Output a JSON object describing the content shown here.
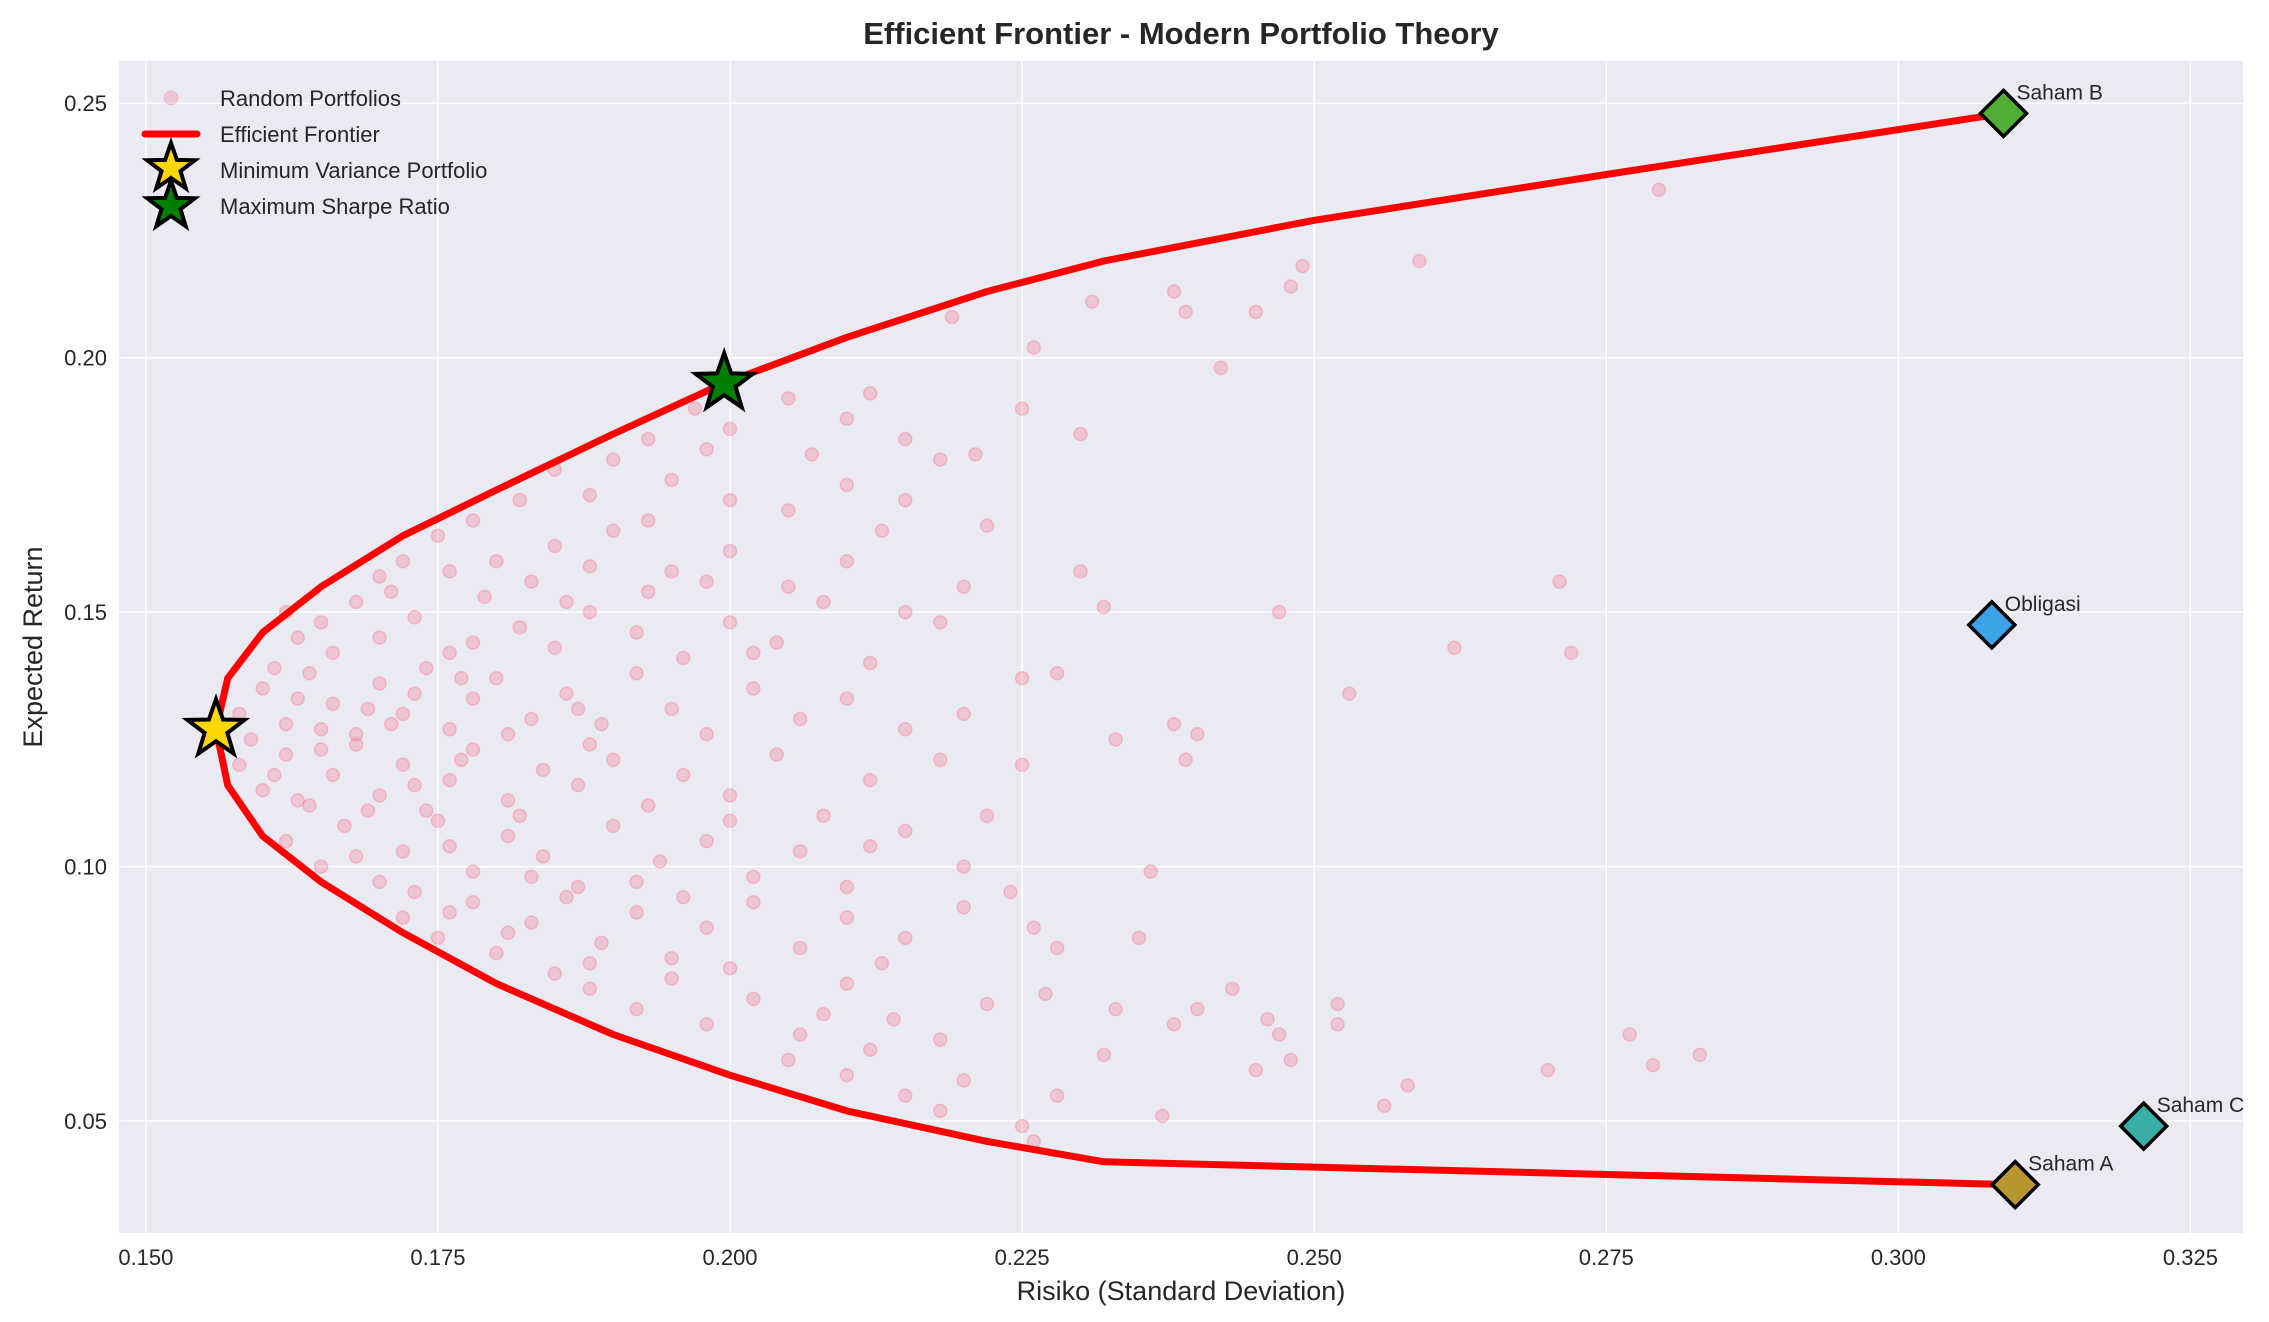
{
  "chart_data": {
    "type": "scatter",
    "title": "Efficient Frontier - Modern Portfolio Theory",
    "xlabel": "Risiko (Standard Deviation)",
    "ylabel": "Expected Return",
    "xlim": [
      0.1477,
      0.3295
    ],
    "ylim": [
      0.028,
      0.2583
    ],
    "xticks": [
      "0.150",
      "0.175",
      "0.200",
      "0.225",
      "0.250",
      "0.275",
      "0.300",
      "0.325"
    ],
    "yticks": [
      "0.05",
      "0.10",
      "0.15",
      "0.20",
      "0.25"
    ],
    "grid": true,
    "legend_position": "top-left",
    "background_color": "#EAEAF2",
    "legend": [
      {
        "label": "Random Portfolios",
        "marker": "circle",
        "color": "#f77189"
      },
      {
        "label": "Efficient Frontier",
        "marker": "line",
        "color": "#ff0000"
      },
      {
        "label": "Minimum Variance Portfolio",
        "marker": "star",
        "color": "#ffd700"
      },
      {
        "label": "Maximum Sharpe Ratio",
        "marker": "star",
        "color": "#008000"
      }
    ],
    "random_portfolios": [
      [
        0.197,
        0.19
      ],
      [
        0.205,
        0.192
      ],
      [
        0.21,
        0.188
      ],
      [
        0.2,
        0.186
      ],
      [
        0.215,
        0.184
      ],
      [
        0.193,
        0.184
      ],
      [
        0.212,
        0.193
      ],
      [
        0.221,
        0.181
      ],
      [
        0.219,
        0.208
      ],
      [
        0.226,
        0.202
      ],
      [
        0.231,
        0.211
      ],
      [
        0.225,
        0.19
      ],
      [
        0.185,
        0.178
      ],
      [
        0.19,
        0.18
      ],
      [
        0.195,
        0.176
      ],
      [
        0.2,
        0.172
      ],
      [
        0.205,
        0.17
      ],
      [
        0.21,
        0.175
      ],
      [
        0.215,
        0.172
      ],
      [
        0.188,
        0.173
      ],
      [
        0.182,
        0.172
      ],
      [
        0.218,
        0.18
      ],
      [
        0.23,
        0.185
      ],
      [
        0.222,
        0.167
      ],
      [
        0.207,
        0.181
      ],
      [
        0.198,
        0.182
      ],
      [
        0.213,
        0.166
      ],
      [
        0.175,
        0.165
      ],
      [
        0.178,
        0.168
      ],
      [
        0.18,
        0.16
      ],
      [
        0.185,
        0.163
      ],
      [
        0.19,
        0.166
      ],
      [
        0.195,
        0.158
      ],
      [
        0.2,
        0.162
      ],
      [
        0.205,
        0.155
      ],
      [
        0.172,
        0.16
      ],
      [
        0.17,
        0.157
      ],
      [
        0.183,
        0.156
      ],
      [
        0.188,
        0.159
      ],
      [
        0.21,
        0.16
      ],
      [
        0.215,
        0.15
      ],
      [
        0.22,
        0.155
      ],
      [
        0.23,
        0.158
      ],
      [
        0.193,
        0.168
      ],
      [
        0.176,
        0.158
      ],
      [
        0.198,
        0.156
      ],
      [
        0.218,
        0.148
      ],
      [
        0.162,
        0.15
      ],
      [
        0.165,
        0.148
      ],
      [
        0.168,
        0.152
      ],
      [
        0.17,
        0.145
      ],
      [
        0.173,
        0.149
      ],
      [
        0.176,
        0.142
      ],
      [
        0.179,
        0.153
      ],
      [
        0.182,
        0.147
      ],
      [
        0.185,
        0.143
      ],
      [
        0.188,
        0.15
      ],
      [
        0.192,
        0.146
      ],
      [
        0.196,
        0.141
      ],
      [
        0.2,
        0.148
      ],
      [
        0.204,
        0.144
      ],
      [
        0.208,
        0.152
      ],
      [
        0.212,
        0.14
      ],
      [
        0.166,
        0.142
      ],
      [
        0.163,
        0.145
      ],
      [
        0.171,
        0.154
      ],
      [
        0.178,
        0.144
      ],
      [
        0.186,
        0.152
      ],
      [
        0.193,
        0.154
      ],
      [
        0.202,
        0.142
      ],
      [
        0.232,
        0.151
      ],
      [
        0.158,
        0.13
      ],
      [
        0.16,
        0.135
      ],
      [
        0.162,
        0.128
      ],
      [
        0.164,
        0.138
      ],
      [
        0.166,
        0.132
      ],
      [
        0.168,
        0.126
      ],
      [
        0.17,
        0.136
      ],
      [
        0.172,
        0.13
      ],
      [
        0.174,
        0.139
      ],
      [
        0.176,
        0.127
      ],
      [
        0.178,
        0.133
      ],
      [
        0.18,
        0.137
      ],
      [
        0.183,
        0.129
      ],
      [
        0.186,
        0.134
      ],
      [
        0.189,
        0.128
      ],
      [
        0.192,
        0.138
      ],
      [
        0.195,
        0.131
      ],
      [
        0.198,
        0.126
      ],
      [
        0.202,
        0.135
      ],
      [
        0.206,
        0.129
      ],
      [
        0.21,
        0.133
      ],
      [
        0.215,
        0.127
      ],
      [
        0.159,
        0.125
      ],
      [
        0.161,
        0.139
      ],
      [
        0.165,
        0.127
      ],
      [
        0.169,
        0.131
      ],
      [
        0.173,
        0.134
      ],
      [
        0.177,
        0.137
      ],
      [
        0.181,
        0.126
      ],
      [
        0.187,
        0.131
      ],
      [
        0.225,
        0.137
      ],
      [
        0.228,
        0.138
      ],
      [
        0.24,
        0.126
      ],
      [
        0.22,
        0.13
      ],
      [
        0.163,
        0.133
      ],
      [
        0.171,
        0.128
      ],
      [
        0.158,
        0.12
      ],
      [
        0.16,
        0.115
      ],
      [
        0.162,
        0.122
      ],
      [
        0.164,
        0.112
      ],
      [
        0.166,
        0.118
      ],
      [
        0.168,
        0.124
      ],
      [
        0.17,
        0.114
      ],
      [
        0.172,
        0.12
      ],
      [
        0.174,
        0.111
      ],
      [
        0.176,
        0.117
      ],
      [
        0.178,
        0.123
      ],
      [
        0.181,
        0.113
      ],
      [
        0.184,
        0.119
      ],
      [
        0.187,
        0.116
      ],
      [
        0.19,
        0.121
      ],
      [
        0.193,
        0.112
      ],
      [
        0.196,
        0.118
      ],
      [
        0.2,
        0.114
      ],
      [
        0.204,
        0.122
      ],
      [
        0.208,
        0.11
      ],
      [
        0.212,
        0.117
      ],
      [
        0.218,
        0.121
      ],
      [
        0.225,
        0.12
      ],
      [
        0.161,
        0.118
      ],
      [
        0.165,
        0.123
      ],
      [
        0.169,
        0.111
      ],
      [
        0.173,
        0.116
      ],
      [
        0.177,
        0.121
      ],
      [
        0.182,
        0.11
      ],
      [
        0.188,
        0.124
      ],
      [
        0.233,
        0.125
      ],
      [
        0.222,
        0.11
      ],
      [
        0.163,
        0.113
      ],
      [
        0.162,
        0.105
      ],
      [
        0.165,
        0.1
      ],
      [
        0.167,
        0.108
      ],
      [
        0.17,
        0.097
      ],
      [
        0.172,
        0.103
      ],
      [
        0.175,
        0.109
      ],
      [
        0.178,
        0.099
      ],
      [
        0.181,
        0.106
      ],
      [
        0.184,
        0.102
      ],
      [
        0.187,
        0.096
      ],
      [
        0.19,
        0.108
      ],
      [
        0.194,
        0.101
      ],
      [
        0.198,
        0.105
      ],
      [
        0.202,
        0.098
      ],
      [
        0.206,
        0.103
      ],
      [
        0.21,
        0.096
      ],
      [
        0.215,
        0.107
      ],
      [
        0.22,
        0.1
      ],
      [
        0.168,
        0.102
      ],
      [
        0.173,
        0.095
      ],
      [
        0.176,
        0.104
      ],
      [
        0.183,
        0.098
      ],
      [
        0.192,
        0.097
      ],
      [
        0.2,
        0.109
      ],
      [
        0.236,
        0.099
      ],
      [
        0.212,
        0.104
      ],
      [
        0.172,
        0.09
      ],
      [
        0.175,
        0.086
      ],
      [
        0.178,
        0.093
      ],
      [
        0.18,
        0.083
      ],
      [
        0.183,
        0.089
      ],
      [
        0.186,
        0.094
      ],
      [
        0.189,
        0.085
      ],
      [
        0.192,
        0.091
      ],
      [
        0.195,
        0.082
      ],
      [
        0.198,
        0.088
      ],
      [
        0.202,
        0.093
      ],
      [
        0.206,
        0.084
      ],
      [
        0.21,
        0.09
      ],
      [
        0.215,
        0.086
      ],
      [
        0.22,
        0.092
      ],
      [
        0.226,
        0.088
      ],
      [
        0.176,
        0.091
      ],
      [
        0.181,
        0.087
      ],
      [
        0.188,
        0.081
      ],
      [
        0.196,
        0.094
      ],
      [
        0.228,
        0.084
      ],
      [
        0.235,
        0.086
      ],
      [
        0.213,
        0.081
      ],
      [
        0.224,
        0.095
      ],
      [
        0.188,
        0.076
      ],
      [
        0.192,
        0.072
      ],
      [
        0.195,
        0.078
      ],
      [
        0.198,
        0.069
      ],
      [
        0.202,
        0.074
      ],
      [
        0.206,
        0.067
      ],
      [
        0.21,
        0.077
      ],
      [
        0.214,
        0.07
      ],
      [
        0.218,
        0.066
      ],
      [
        0.222,
        0.073
      ],
      [
        0.227,
        0.075
      ],
      [
        0.233,
        0.072
      ],
      [
        0.238,
        0.069
      ],
      [
        0.185,
        0.079
      ],
      [
        0.2,
        0.08
      ],
      [
        0.208,
        0.071
      ],
      [
        0.243,
        0.076
      ],
      [
        0.246,
        0.07
      ],
      [
        0.24,
        0.072
      ],
      [
        0.205,
        0.062
      ],
      [
        0.21,
        0.059
      ],
      [
        0.215,
        0.055
      ],
      [
        0.218,
        0.052
      ],
      [
        0.22,
        0.058
      ],
      [
        0.225,
        0.049
      ],
      [
        0.228,
        0.055
      ],
      [
        0.232,
        0.063
      ],
      [
        0.237,
        0.051
      ],
      [
        0.245,
        0.06
      ],
      [
        0.226,
        0.046
      ],
      [
        0.212,
        0.064
      ],
      [
        0.2795,
        0.233
      ],
      [
        0.259,
        0.219
      ],
      [
        0.249,
        0.218
      ],
      [
        0.248,
        0.214
      ],
      [
        0.245,
        0.209
      ],
      [
        0.238,
        0.213
      ],
      [
        0.239,
        0.209
      ],
      [
        0.242,
        0.198
      ],
      [
        0.271,
        0.156
      ],
      [
        0.272,
        0.142
      ],
      [
        0.262,
        0.143
      ],
      [
        0.253,
        0.134
      ],
      [
        0.247,
        0.15
      ],
      [
        0.239,
        0.121
      ],
      [
        0.238,
        0.128
      ],
      [
        0.277,
        0.067
      ],
      [
        0.279,
        0.061
      ],
      [
        0.283,
        0.063
      ],
      [
        0.27,
        0.06
      ],
      [
        0.258,
        0.057
      ],
      [
        0.256,
        0.053
      ],
      [
        0.252,
        0.073
      ],
      [
        0.252,
        0.069
      ],
      [
        0.248,
        0.062
      ],
      [
        0.247,
        0.067
      ]
    ],
    "efficient_frontier": [
      [
        0.31,
        0.0375
      ],
      [
        0.232,
        0.042
      ],
      [
        0.222,
        0.046
      ],
      [
        0.21,
        0.052
      ],
      [
        0.2,
        0.059
      ],
      [
        0.19,
        0.067
      ],
      [
        0.18,
        0.077
      ],
      [
        0.172,
        0.087
      ],
      [
        0.165,
        0.097
      ],
      [
        0.16,
        0.106
      ],
      [
        0.157,
        0.116
      ],
      [
        0.156,
        0.127
      ],
      [
        0.157,
        0.137
      ],
      [
        0.16,
        0.146
      ],
      [
        0.165,
        0.155
      ],
      [
        0.172,
        0.165
      ],
      [
        0.18,
        0.174
      ],
      [
        0.19,
        0.185
      ],
      [
        0.1995,
        0.195
      ],
      [
        0.21,
        0.204
      ],
      [
        0.222,
        0.213
      ],
      [
        0.232,
        0.219
      ],
      [
        0.25,
        0.227
      ],
      [
        0.275,
        0.236
      ],
      [
        0.309,
        0.248
      ]
    ],
    "min_variance": {
      "x": 0.156,
      "y": 0.127,
      "color": "#ffd700"
    },
    "max_sharpe": {
      "x": 0.1995,
      "y": 0.195,
      "color": "#008000"
    },
    "assets": [
      {
        "name": "Saham A",
        "x": 0.31,
        "y": 0.0375,
        "color": "#b8962e"
      },
      {
        "name": "Saham B",
        "x": 0.309,
        "y": 0.248,
        "color": "#4fae33"
      },
      {
        "name": "Saham C",
        "x": 0.321,
        "y": 0.049,
        "color": "#37ada4"
      },
      {
        "name": "Obligasi",
        "x": 0.308,
        "y": 0.1475,
        "color": "#3ba3e8"
      }
    ]
  }
}
